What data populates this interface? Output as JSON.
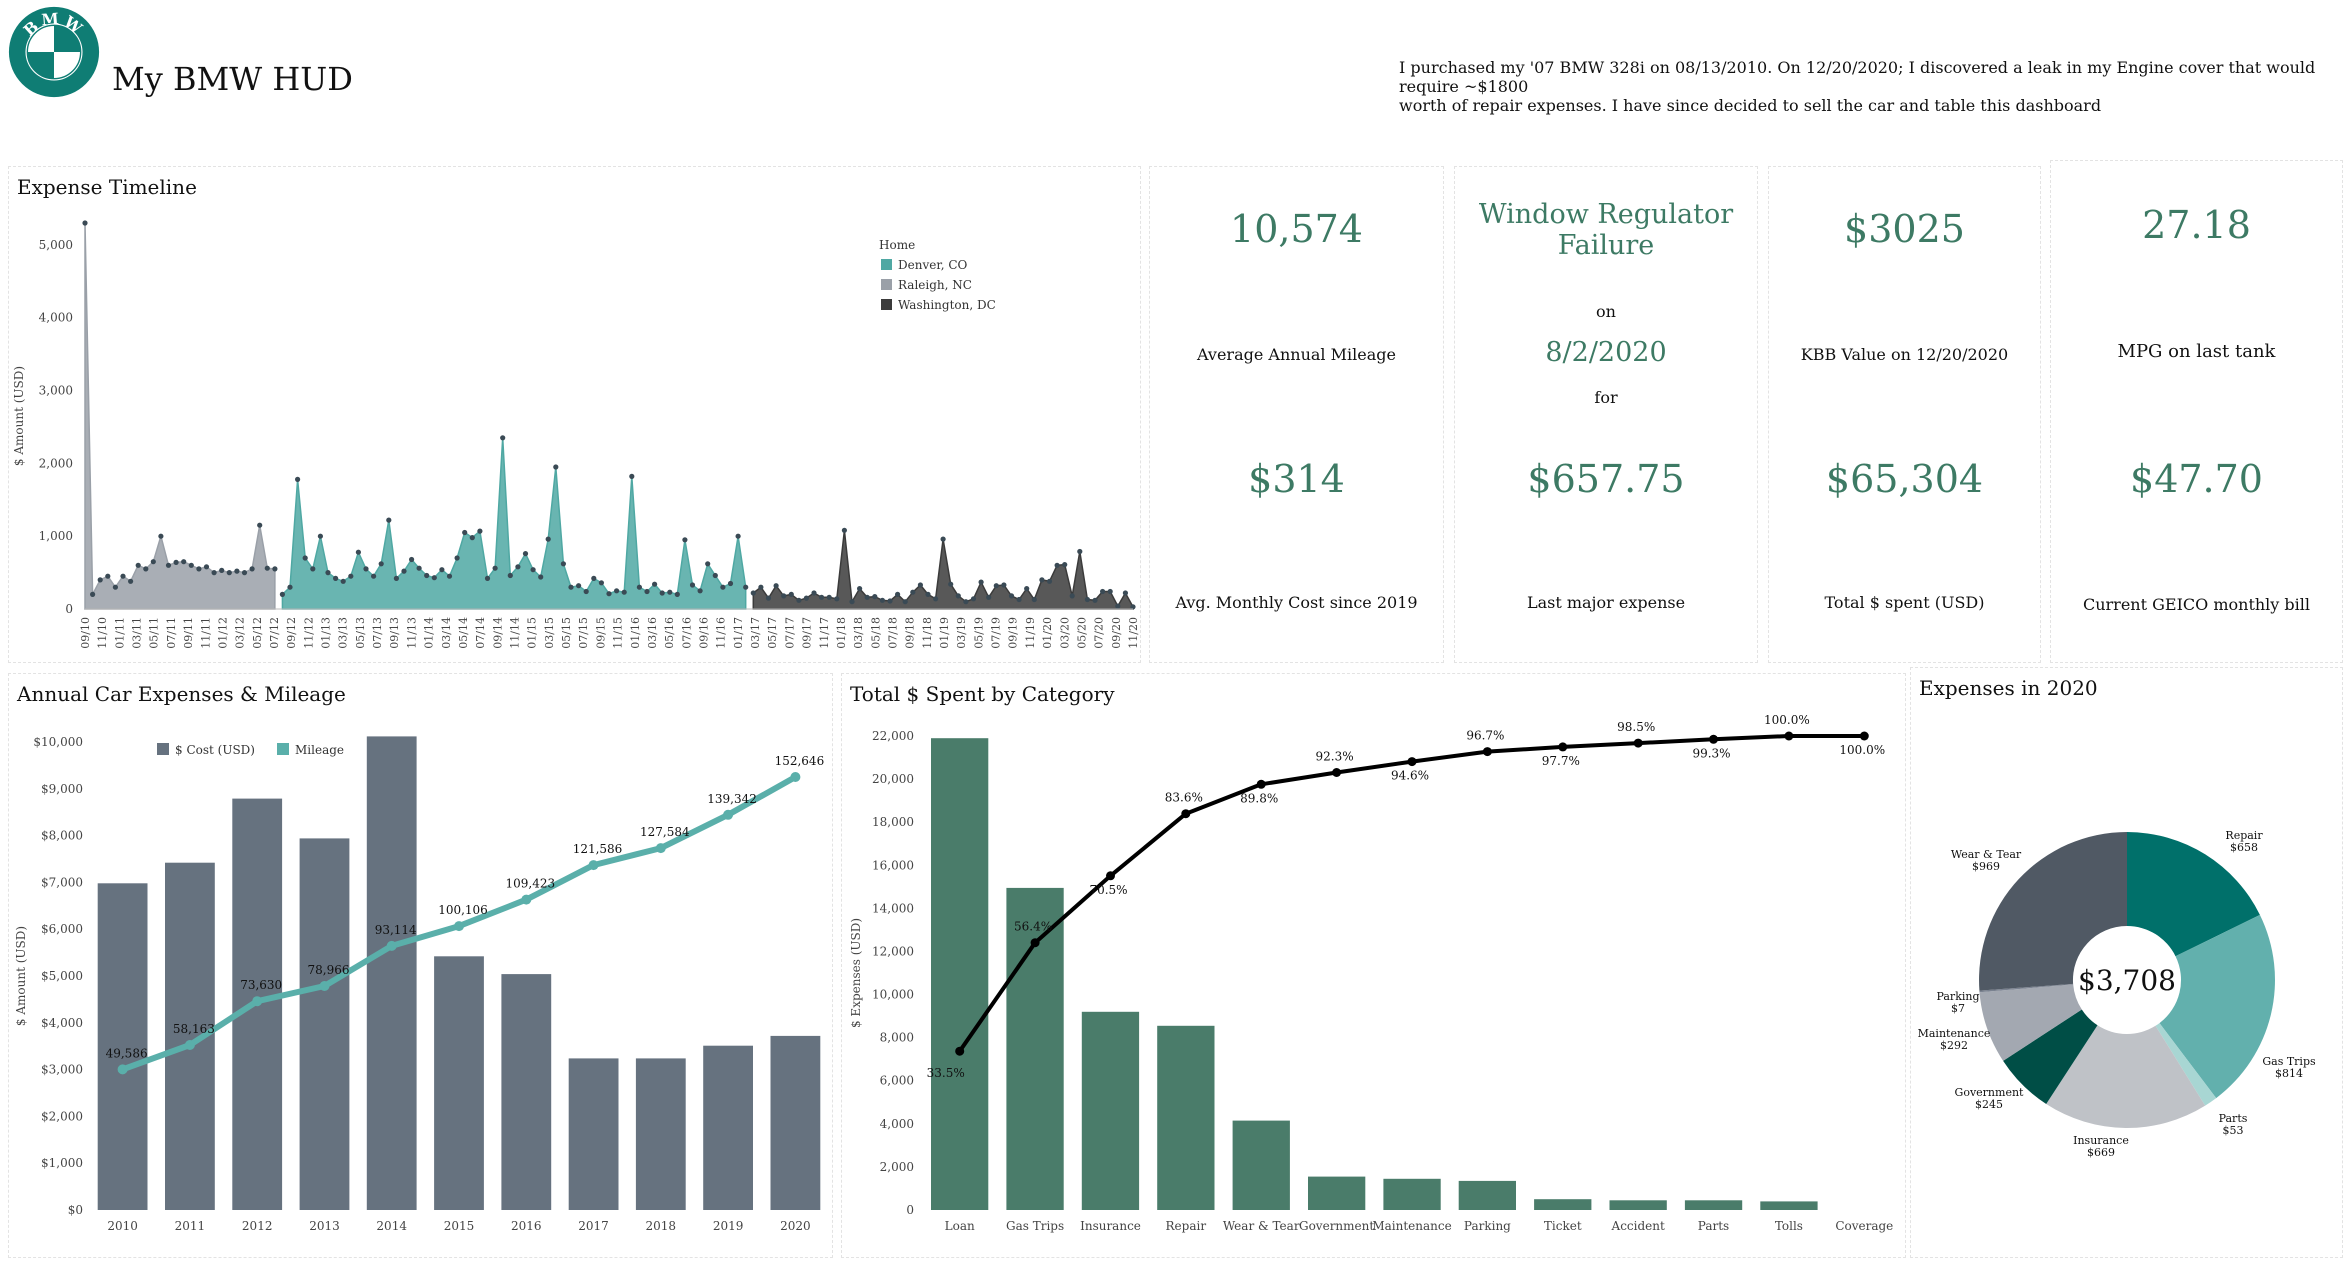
{
  "header": {
    "app_title": "My BMW HUD",
    "logo_text": "BMW",
    "note_line1": "I purchased my '07 BMW 328i on 08/13/2010. On 12/20/2020; I discovered a leak in my Engine cover that would require ~$1800",
    "note_line2": "worth of repair expenses. I have since decided to sell the car and table this dashboard"
  },
  "colors": {
    "teal": "#4fa8a3",
    "grey": "#9aa0a8",
    "dark": "#3b3b3b",
    "bar_slate": "#66727f",
    "bar_green": "#4a7c6a",
    "kpi_green": "#3d7a64"
  },
  "kpis": {
    "mileage": {
      "value": "10,574",
      "label": "Average Annual Mileage"
    },
    "monthly_cost": {
      "value": "$314",
      "label": "Avg. Monthly Cost since 2019"
    },
    "failure": {
      "title_line1": "Window Regulator",
      "title_line2": "Failure",
      "on": "on",
      "date": "8/2/2020",
      "for": "for"
    },
    "major_expense": {
      "value": "$657.75",
      "label": "Last major expense"
    },
    "kbb": {
      "value": "$3025",
      "label": "KBB Value on 12/20/2020"
    },
    "total_spent": {
      "value": "$65,304",
      "label": "Total $ spent (USD)"
    },
    "mpg": {
      "value": "27.18",
      "label": "MPG on last tank"
    },
    "geico": {
      "value": "$47.70",
      "label": "Current GEICO monthly bill"
    }
  },
  "chart_data": [
    {
      "id": "expense_timeline",
      "type": "area",
      "title": "Expense Timeline",
      "ylabel": "$ Amount (USD)",
      "ylim": [
        0,
        5300
      ],
      "yticks": [
        0,
        1000,
        2000,
        3000,
        4000,
        5000
      ],
      "ytick_labels": [
        "0",
        "1,000",
        "2,000",
        "3,000",
        "4,000",
        "5,000"
      ],
      "x_labels": [
        "09/10",
        "11/10",
        "01/11",
        "03/11",
        "05/11",
        "07/11",
        "09/11",
        "11/11",
        "01/12",
        "03/12",
        "05/12",
        "07/12",
        "09/12",
        "11/12",
        "01/13",
        "03/13",
        "05/13",
        "07/13",
        "09/13",
        "11/13",
        "01/14",
        "03/14",
        "05/14",
        "07/14",
        "09/14",
        "11/14",
        "01/15",
        "03/15",
        "05/15",
        "07/15",
        "09/15",
        "11/15",
        "01/16",
        "03/16",
        "05/16",
        "07/16",
        "09/16",
        "11/16",
        "01/17",
        "03/17",
        "05/17",
        "07/17",
        "09/17",
        "11/17",
        "01/18",
        "03/18",
        "05/18",
        "07/18",
        "09/18",
        "11/18",
        "01/19",
        "03/19",
        "05/19",
        "07/19",
        "09/19",
        "11/19",
        "01/20",
        "03/20",
        "05/20",
        "07/20",
        "09/20",
        "11/20"
      ],
      "legend": {
        "title": "Home",
        "placement": "top-right",
        "items": [
          {
            "name": "Denver, CO",
            "color": "#4fa8a3"
          },
          {
            "name": "Raleigh, NC",
            "color": "#9aa0a8"
          },
          {
            "name": "Washington, DC",
            "color": "#3b3b3b"
          }
        ]
      },
      "series": [
        {
          "name": "Raleigh, NC",
          "color": "#9aa0a8",
          "values": [
            5300,
            200,
            400,
            450,
            300,
            450,
            380,
            600,
            550,
            650,
            1000,
            600,
            640,
            650,
            600,
            550,
            580,
            500,
            530,
            500,
            520,
            500,
            550,
            1150,
            560,
            550
          ]
        },
        {
          "name": "Denver, CO",
          "color": "#4fa8a3",
          "values": [
            200,
            300,
            1780,
            700,
            550,
            1000,
            500,
            420,
            380,
            450,
            780,
            550,
            450,
            620,
            1220,
            420,
            520,
            680,
            560,
            460,
            430,
            540,
            450,
            700,
            1050,
            980,
            1070,
            420,
            560,
            2350,
            460,
            580,
            760,
            540,
            440,
            960,
            1950,
            620,
            300,
            320,
            240,
            420,
            360,
            210,
            250,
            230,
            1820,
            300,
            240,
            340,
            220,
            230,
            200,
            950,
            330,
            250,
            620,
            460,
            300,
            350,
            1000,
            300
          ]
        },
        {
          "name": "Washington, DC",
          "color": "#3b3b3b",
          "values": [
            220,
            300,
            150,
            320,
            180,
            200,
            120,
            150,
            220,
            160,
            160,
            140,
            1080,
            100,
            280,
            160,
            170,
            120,
            110,
            200,
            100,
            230,
            330,
            200,
            140,
            960,
            340,
            180,
            100,
            140,
            370,
            160,
            320,
            330,
            180,
            130,
            280,
            130,
            400,
            380,
            600,
            610,
            180,
            790,
            130,
            120,
            240,
            240,
            40,
            220,
            30
          ]
        }
      ]
    },
    {
      "id": "annual_expenses",
      "type": "bar",
      "title": "Annual Car Expenses & Mileage",
      "ylabel": "$ Amount (USD)",
      "ylim": [
        0,
        10000
      ],
      "yticks": [
        0,
        1000,
        2000,
        3000,
        4000,
        5000,
        6000,
        7000,
        8000,
        9000,
        10000
      ],
      "ytick_labels": [
        "$0",
        "$1,000",
        "$2,000",
        "$3,000",
        "$4,000",
        "$5,000",
        "$6,000",
        "$7,000",
        "$8,000",
        "$9,000",
        "$10,000"
      ],
      "categories": [
        "2010",
        "2011",
        "2012",
        "2013",
        "2014",
        "2015",
        "2016",
        "2017",
        "2018",
        "2019",
        "2020"
      ],
      "legend": {
        "placement": "top-left",
        "items": [
          {
            "name": "$ Cost (USD)",
            "color": "#66727f"
          },
          {
            "name": "Mileage",
            "color": "#5aafaa"
          }
        ]
      },
      "series": [
        {
          "name": "$ Cost (USD)",
          "color": "#66727f",
          "values": [
            6980,
            7420,
            8790,
            7940,
            10120,
            5420,
            5040,
            3240,
            3240,
            3510,
            3720
          ]
        },
        {
          "name": "Mileage",
          "color": "#5aafaa",
          "scale_max": 165000,
          "values": [
            49586,
            58163,
            73630,
            78966,
            93114,
            100106,
            109423,
            121586,
            127584,
            139342,
            152646
          ],
          "labels": [
            "49,586",
            "58,163",
            "73,630",
            "78,966",
            "93,114",
            "100,106",
            "109,423",
            "121,586",
            "127,584",
            "139,342",
            "152,646"
          ]
        }
      ]
    },
    {
      "id": "spent_by_category",
      "type": "bar",
      "title": "Total $ Spent by Category",
      "ylabel": "$ Expenses (USD)",
      "ylim": [
        0,
        22000
      ],
      "yticks": [
        0,
        2000,
        4000,
        6000,
        8000,
        10000,
        12000,
        14000,
        16000,
        18000,
        20000,
        22000
      ],
      "ytick_labels": [
        "0",
        "2,000",
        "4,000",
        "6,000",
        "8,000",
        "10,000",
        "12,000",
        "14,000",
        "16,000",
        "18,000",
        "20,000",
        "22,000"
      ],
      "categories": [
        "Loan",
        "Gas Trips",
        "Insurance",
        "Repair",
        "Wear & Tear",
        "Government",
        "Maintenance",
        "Parking",
        "Ticket",
        "Accident",
        "Parts",
        "Tolls",
        "Coverage"
      ],
      "series": [
        {
          "name": "Expenses",
          "color": "#4a7c6a",
          "values": [
            21900,
            14950,
            9200,
            8550,
            4150,
            1550,
            1450,
            1350,
            500,
            450,
            450,
            400,
            0
          ]
        },
        {
          "name": "Cumulative %",
          "color": "#000000",
          "scale_max": 100,
          "values": [
            33.5,
            56.4,
            70.5,
            83.6,
            89.8,
            92.3,
            94.6,
            96.7,
            97.7,
            98.5,
            99.3,
            100.0,
            100.0
          ],
          "labels": [
            "33.5%",
            "56.4%",
            "70.5%",
            "83.6%",
            "89.8%",
            "92.3%",
            "94.6%",
            "96.7%",
            "97.7%",
            "98.5%",
            "99.3%",
            "100.0%",
            "100.0%"
          ]
        }
      ]
    },
    {
      "id": "expenses_2020",
      "type": "pie",
      "title": "Expenses in 2020",
      "center_label": "$3,708",
      "slices": [
        {
          "name": "Repair",
          "value": 658,
          "label": "$658",
          "color": "#00706a"
        },
        {
          "name": "Gas Trips",
          "value": 814,
          "label": "$814",
          "color": "#62b0ad"
        },
        {
          "name": "Parts",
          "value": 53,
          "label": "$53",
          "color": "#a8d6d3"
        },
        {
          "name": "Insurance",
          "value": 669,
          "label": "$669",
          "color": "#bfc2c7"
        },
        {
          "name": "Government",
          "value": 245,
          "label": "$245",
          "color": "#004e46"
        },
        {
          "name": "Maintenance",
          "value": 292,
          "label": "$292",
          "color": "#a3a8b1"
        },
        {
          "name": "Parking",
          "value": 7,
          "label": "$7",
          "color": "#7a8290"
        },
        {
          "name": "Wear & Tear",
          "value": 969,
          "label": "$969",
          "color": "#505964"
        }
      ]
    }
  ]
}
